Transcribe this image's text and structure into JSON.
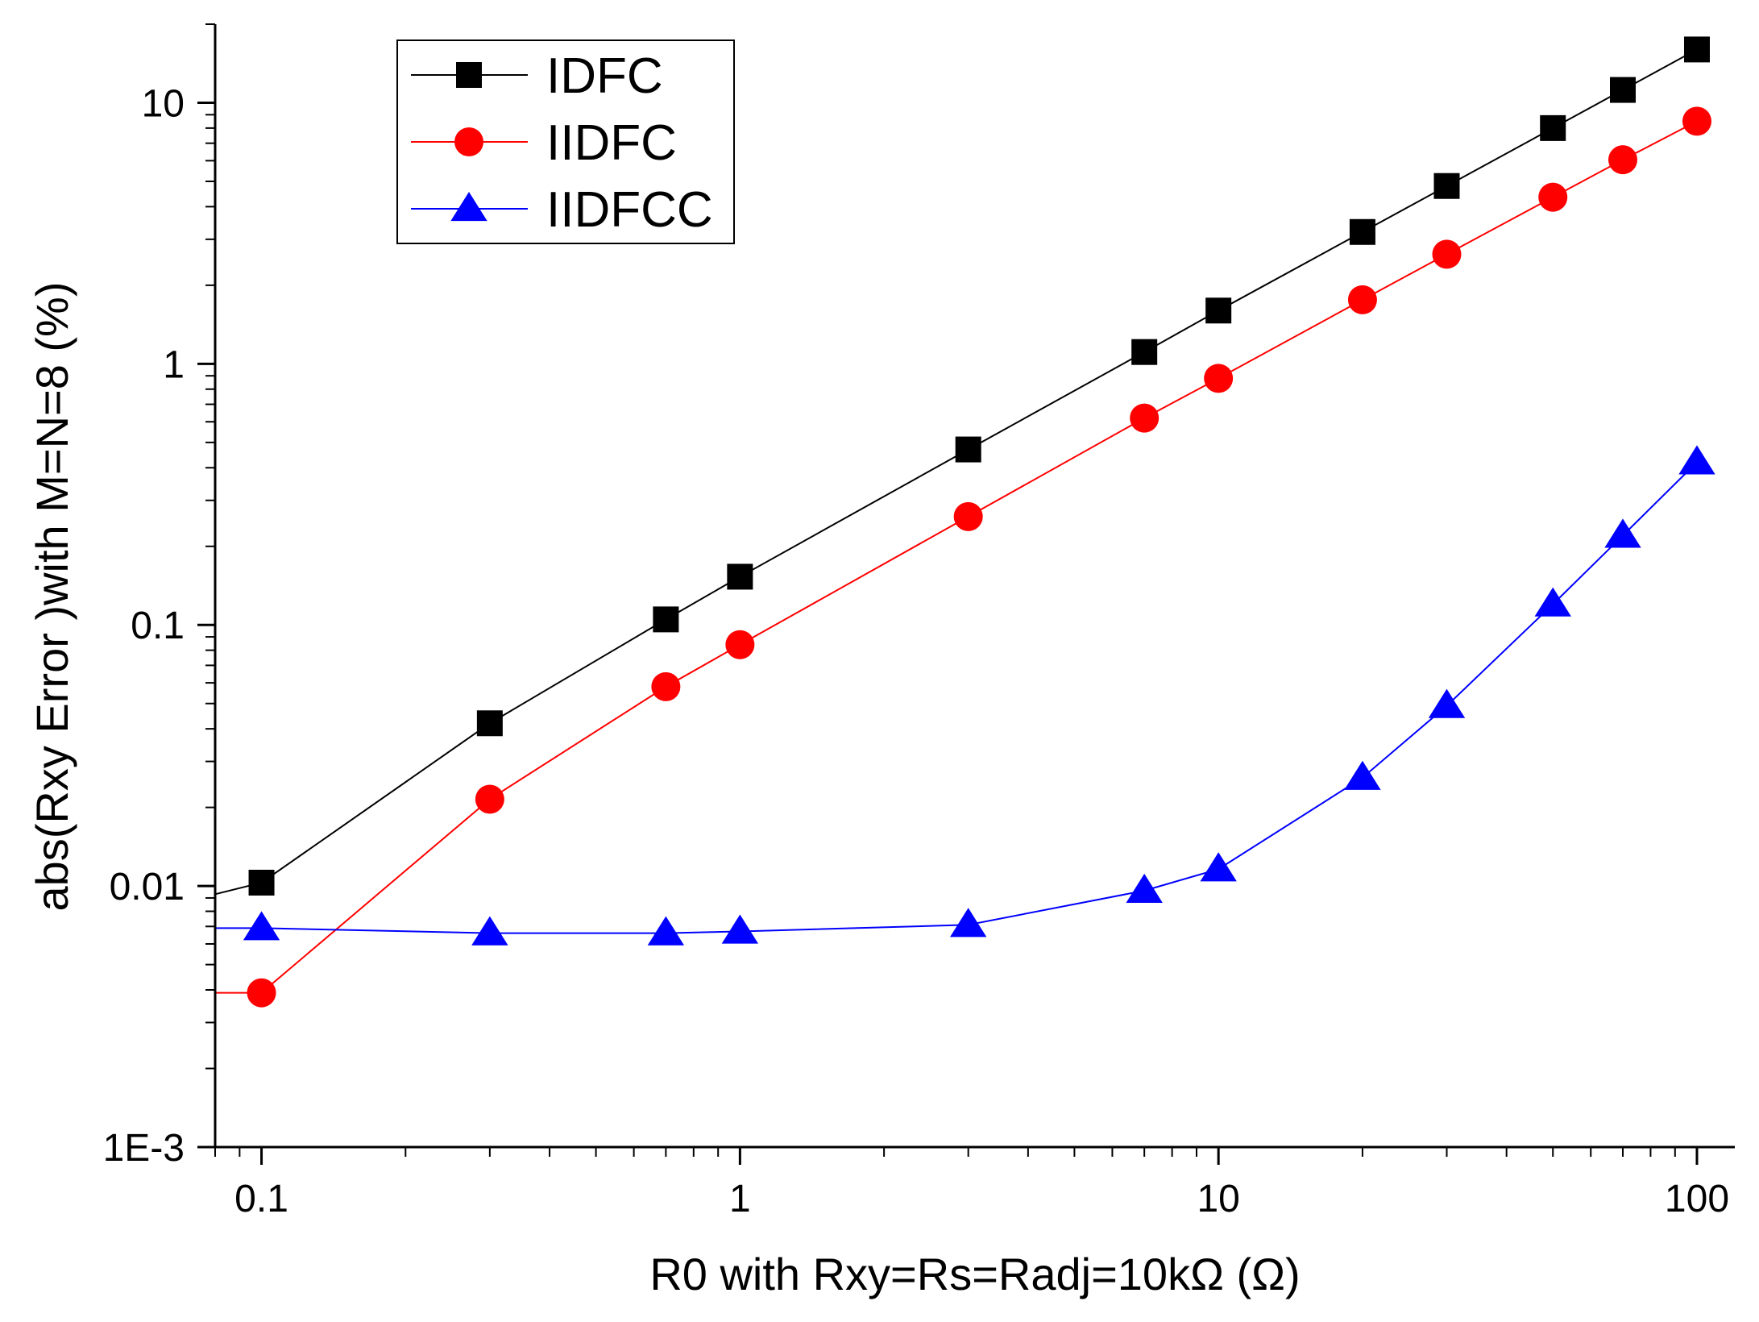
{
  "chart_data": {
    "type": "line",
    "title": "",
    "xlabel": "R0 with Rxy=Rs=Radj=10kΩ (Ω)",
    "ylabel": "abs(Rxy Error )with M=N=8 (%)",
    "xscale": "log",
    "yscale": "log",
    "xlim": [
      0.08,
      120
    ],
    "ylim": [
      0.001,
      20
    ],
    "x_ticks": [
      {
        "value": 0.1,
        "label": "0.1"
      },
      {
        "value": 1,
        "label": "1"
      },
      {
        "value": 10,
        "label": "10"
      },
      {
        "value": 100,
        "label": "100"
      }
    ],
    "y_ticks": [
      {
        "value": 0.001,
        "label": "1E-3"
      },
      {
        "value": 0.01,
        "label": "0.01"
      },
      {
        "value": 0.1,
        "label": "0.1"
      },
      {
        "value": 1,
        "label": "1"
      },
      {
        "value": 10,
        "label": "10"
      }
    ],
    "grid": false,
    "legend_position": "top-left",
    "series": [
      {
        "name": "IDFC",
        "color": "#000000",
        "marker": "square",
        "lead_in": {
          "x": 0.08,
          "y": 0.0093
        },
        "points": [
          {
            "x": 0.1,
            "y": 0.0103
          },
          {
            "x": 0.3,
            "y": 0.042
          },
          {
            "x": 0.7,
            "y": 0.105
          },
          {
            "x": 1,
            "y": 0.153
          },
          {
            "x": 3,
            "y": 0.47
          },
          {
            "x": 7,
            "y": 1.11
          },
          {
            "x": 10,
            "y": 1.6
          },
          {
            "x": 20,
            "y": 3.2
          },
          {
            "x": 30,
            "y": 4.8
          },
          {
            "x": 50,
            "y": 8.0
          },
          {
            "x": 70,
            "y": 11.2
          },
          {
            "x": 100,
            "y": 16.0
          }
        ]
      },
      {
        "name": "IIDFC",
        "color": "#ff0000",
        "marker": "circle",
        "lead_in": {
          "x": 0.08,
          "y": 0.0039
        },
        "points": [
          {
            "x": 0.1,
            "y": 0.0039
          },
          {
            "x": 0.3,
            "y": 0.0215
          },
          {
            "x": 0.7,
            "y": 0.058
          },
          {
            "x": 1,
            "y": 0.084
          },
          {
            "x": 3,
            "y": 0.26
          },
          {
            "x": 7,
            "y": 0.62
          },
          {
            "x": 10,
            "y": 0.88
          },
          {
            "x": 20,
            "y": 1.76
          },
          {
            "x": 30,
            "y": 2.63
          },
          {
            "x": 50,
            "y": 4.35
          },
          {
            "x": 70,
            "y": 6.05
          },
          {
            "x": 100,
            "y": 8.5
          }
        ]
      },
      {
        "name": "IIDFCC",
        "color": "#0000ff",
        "marker": "triangle",
        "lead_in": {
          "x": 0.08,
          "y": 0.0069
        },
        "points": [
          {
            "x": 0.1,
            "y": 0.0069
          },
          {
            "x": 0.3,
            "y": 0.0066
          },
          {
            "x": 0.7,
            "y": 0.0066
          },
          {
            "x": 1,
            "y": 0.0067
          },
          {
            "x": 3,
            "y": 0.0071
          },
          {
            "x": 7,
            "y": 0.0096
          },
          {
            "x": 10,
            "y": 0.0116
          },
          {
            "x": 20,
            "y": 0.026
          },
          {
            "x": 30,
            "y": 0.049
          },
          {
            "x": 50,
            "y": 0.12
          },
          {
            "x": 70,
            "y": 0.22
          },
          {
            "x": 100,
            "y": 0.42
          }
        ]
      }
    ]
  }
}
